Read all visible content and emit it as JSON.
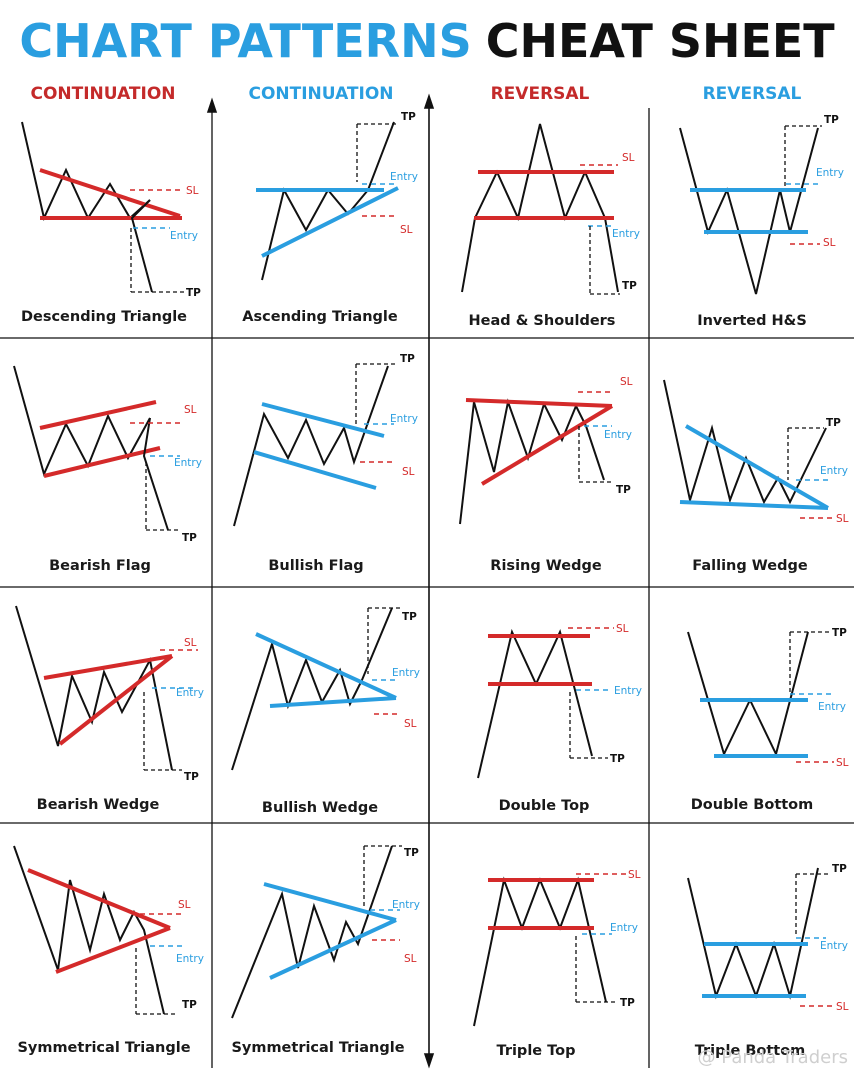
{
  "title": {
    "part1": "CHART PATTERNS",
    "part2": "CHEAT SHEET"
  },
  "columns": [
    {
      "label": "CONTINUATION",
      "color": "#c42a2a"
    },
    {
      "label": "CONTINUATION",
      "color": "#2a9ee0"
    },
    {
      "label": "REVERSAL",
      "color": "#c42a2a"
    },
    {
      "label": "REVERSAL",
      "color": "#2a9ee0"
    }
  ],
  "markers": {
    "sl": "SL",
    "entry": "Entry",
    "tp": "TP"
  },
  "patterns": [
    {
      "id": "descending-triangle",
      "name": "Descending Triangle"
    },
    {
      "id": "ascending-triangle",
      "name": "Ascending Triangle"
    },
    {
      "id": "head-shoulders",
      "name": "Head & Shoulders"
    },
    {
      "id": "inverted-hs",
      "name": "Inverted H&S"
    },
    {
      "id": "bearish-flag",
      "name": "Bearish Flag"
    },
    {
      "id": "bullish-flag",
      "name": "Bullish Flag"
    },
    {
      "id": "rising-wedge",
      "name": "Rising Wedge"
    },
    {
      "id": "falling-wedge",
      "name": "Falling Wedge"
    },
    {
      "id": "bearish-wedge",
      "name": "Bearish Wedge"
    },
    {
      "id": "bullish-wedge",
      "name": "Bullish Wedge"
    },
    {
      "id": "double-top",
      "name": "Double Top"
    },
    {
      "id": "double-bottom",
      "name": "Double Bottom"
    },
    {
      "id": "symmetrical-triangle-bear",
      "name": "Symmetrical Triangle"
    },
    {
      "id": "symmetrical-triangle-bull",
      "name": "Symmetrical Triangle"
    },
    {
      "id": "triple-top",
      "name": "Triple Top"
    },
    {
      "id": "triple-bottom",
      "name": "Triple Bottom"
    }
  ],
  "colors": {
    "red": "#d42a2a",
    "blue": "#2a9ee0",
    "ink": "#111111"
  },
  "watermark": "@ Panda Traders"
}
